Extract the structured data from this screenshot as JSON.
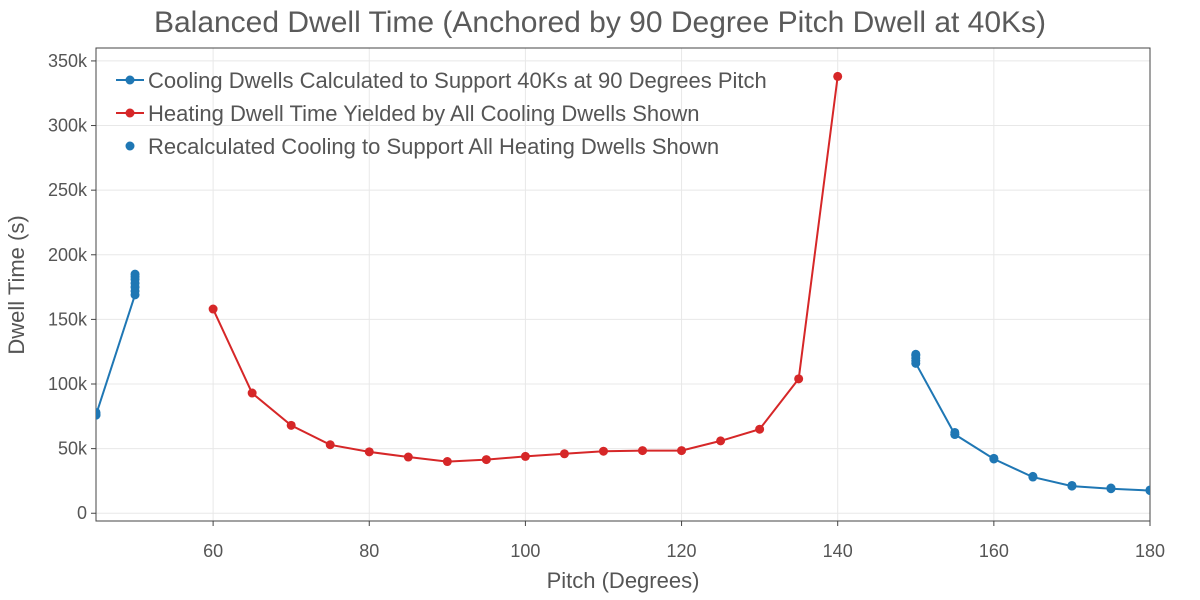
{
  "chart_data": {
    "type": "line",
    "title": "Balanced Dwell Time (Anchored by 90 Degree Pitch Dwell at 40Ks)",
    "xlabel": "Pitch (Degrees)",
    "ylabel": "Dwell Time (s)",
    "xlim": [
      45,
      180
    ],
    "ylim": [
      -6000,
      360000
    ],
    "x_ticks": [
      60,
      80,
      100,
      120,
      140,
      160,
      180
    ],
    "x_tick_labels": [
      "60",
      "80",
      "100",
      "120",
      "140",
      "160",
      "180"
    ],
    "y_ticks": [
      0,
      50000,
      100000,
      150000,
      200000,
      250000,
      300000,
      350000
    ],
    "y_tick_labels": [
      "0",
      "50k",
      "100k",
      "150k",
      "200k",
      "250k",
      "300k",
      "350k"
    ],
    "grid": true,
    "legend_position": "top-left",
    "series": [
      {
        "name": "Cooling Dwells Calculated to Support 40Ks at 90 Degrees Pitch",
        "color": "#1f77b4",
        "mode": "lines+markers",
        "segments": [
          {
            "x": [
              45,
              50
            ],
            "y": [
              76000,
              169000
            ]
          },
          {
            "x": [
              150,
              155,
              160,
              165,
              170,
              175,
              180
            ],
            "y": [
              116000,
              61000,
              42000,
              28000,
              21000,
              19000,
              17500
            ]
          }
        ]
      },
      {
        "name": "Heating Dwell Time Yielded by All Cooling Dwells Shown",
        "color": "#d62728",
        "mode": "lines+markers",
        "segments": [
          {
            "x": [
              60,
              65,
              70,
              75,
              80,
              85,
              90,
              95,
              100,
              105,
              110,
              115,
              120,
              125,
              130,
              135,
              140
            ],
            "y": [
              158000,
              93000,
              68000,
              53000,
              47500,
              43500,
              40000,
              41500,
              44000,
              46000,
              48000,
              48500,
              48500,
              56000,
              65000,
              104000,
              338000
            ]
          }
        ]
      },
      {
        "name": "Recalculated Cooling to Support All Heating Dwells Shown",
        "color": "#1f77b4",
        "mode": "markers",
        "x": [
          45,
          45,
          50,
          50,
          50,
          50,
          50,
          50,
          150,
          150,
          150,
          150,
          155,
          155,
          160,
          165,
          170,
          175,
          180
        ],
        "y": [
          76000,
          78000,
          172000,
          175000,
          178000,
          181000,
          183000,
          185000,
          118000,
          120000,
          122000,
          123000,
          61000,
          62500,
          42500,
          28500,
          21500,
          19500,
          18000
        ]
      }
    ]
  }
}
